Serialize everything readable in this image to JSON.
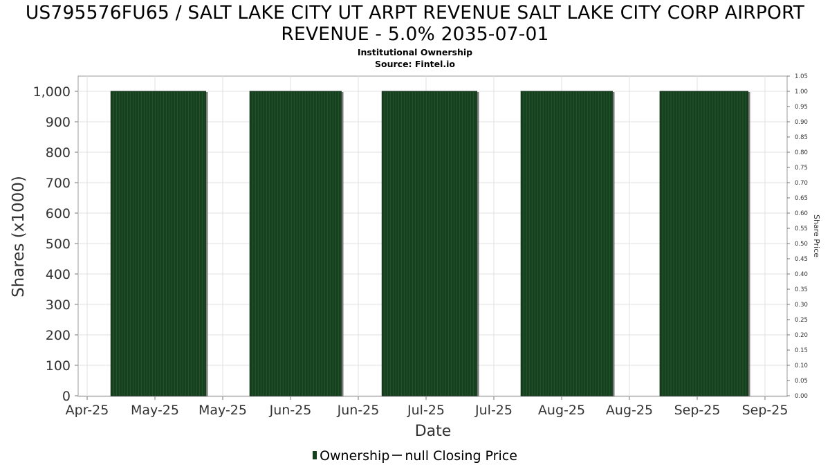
{
  "title_line1": "US795576FU65 / SALT LAKE CITY UT ARPT REVENUE SALT LAKE CITY CORP AIRPORT",
  "title_line2": "REVENUE - 5.0% 2035-07-01",
  "subtitle1": "Institutional Ownership",
  "subtitle2": "Source: Fintel.io",
  "legend": {
    "ownership": "Ownership",
    "price": "null Closing Price"
  },
  "colors": {
    "bar": "#17401f",
    "bar_edge": "#7a7a7a",
    "grid": "#e0e0e0",
    "axis": "#777777"
  },
  "chart_data": {
    "type": "bar",
    "title": "US795576FU65 / SALT LAKE CITY UT ARPT REVENUE SALT LAKE CITY CORP AIRPORT REVENUE - 5.0% 2035-07-01",
    "xlabel": "Date",
    "ylabel": "Shares (x1000)",
    "y2label": "Share Price",
    "ylim": [
      0,
      1050
    ],
    "y2lim": [
      0,
      1.05
    ],
    "yticks": [
      "0",
      "100",
      "200",
      "300",
      "400",
      "500",
      "600",
      "700",
      "800",
      "900",
      "1,000"
    ],
    "y2ticks": [
      "0.00",
      "0.05",
      "0.10",
      "0.15",
      "0.20",
      "0.25",
      "0.30",
      "0.35",
      "0.40",
      "0.45",
      "0.50",
      "0.55",
      "0.60",
      "0.65",
      "0.70",
      "0.75",
      "0.80",
      "0.85",
      "0.90",
      "0.95",
      "1.00",
      "1.05"
    ],
    "xticks": [
      "Apr-25",
      "May-25",
      "May-25",
      "Jun-25",
      "Jun-25",
      "Jul-25",
      "Jul-25",
      "Aug-25",
      "Aug-25",
      "Sep-25",
      "Sep-25"
    ],
    "xlim": [
      0,
      10.9
    ],
    "series": [
      {
        "name": "Ownership",
        "bars": [
          {
            "start": 0.35,
            "end": 1.75,
            "value": 1000
          },
          {
            "start": 2.4,
            "end": 3.75,
            "value": 1000
          },
          {
            "start": 4.35,
            "end": 5.75,
            "value": 1000
          },
          {
            "start": 6.4,
            "end": 7.75,
            "value": 1000
          },
          {
            "start": 8.45,
            "end": 9.75,
            "value": 1000
          }
        ]
      }
    ],
    "grid": true,
    "legend_position": "bottom-center"
  }
}
